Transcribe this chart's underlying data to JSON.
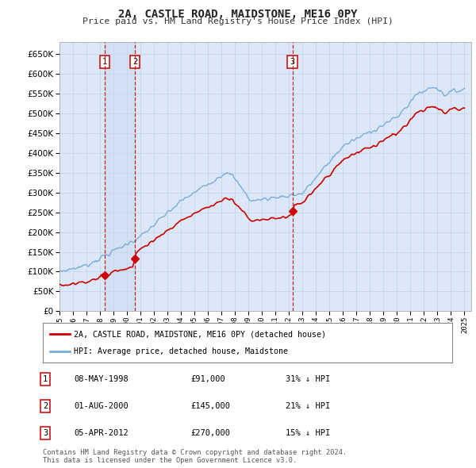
{
  "title": "2A, CASTLE ROAD, MAIDSTONE, ME16 0PY",
  "subtitle": "Price paid vs. HM Land Registry's House Price Index (HPI)",
  "ylim": [
    0,
    680000
  ],
  "yticks": [
    0,
    50000,
    100000,
    150000,
    200000,
    250000,
    300000,
    350000,
    400000,
    450000,
    500000,
    550000,
    600000,
    650000
  ],
  "background_color": "#ffffff",
  "plot_bg_color": "#dce8f8",
  "grid_color": "#c8d8ec",
  "red_line_color": "#cc0000",
  "blue_line_color": "#7aaed6",
  "purchases": [
    {
      "label": "1",
      "date_num": 1998.36,
      "price": 91000,
      "hpi_pct": 31,
      "date_str": "08-MAY-1998"
    },
    {
      "label": "2",
      "date_num": 2000.58,
      "price": 145000,
      "hpi_pct": 21,
      "date_str": "01-AUG-2000"
    },
    {
      "label": "3",
      "date_num": 2012.25,
      "price": 270000,
      "hpi_pct": 15,
      "date_str": "05-APR-2012"
    }
  ],
  "legend_red": "2A, CASTLE ROAD, MAIDSTONE, ME16 0PY (detached house)",
  "legend_blue": "HPI: Average price, detached house, Maidstone",
  "footer": "Contains HM Land Registry data © Crown copyright and database right 2024.\nThis data is licensed under the Open Government Licence v3.0."
}
